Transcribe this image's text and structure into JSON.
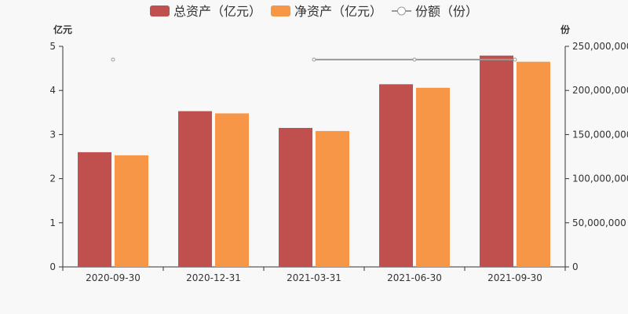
{
  "chart_data": {
    "type": "bar",
    "categories": [
      "2020-09-30",
      "2020-12-31",
      "2021-03-31",
      "2021-06-30",
      "2021-09-30"
    ],
    "series": [
      {
        "name": "总资产（亿元）",
        "type": "bar",
        "axis": "left",
        "color": "#c0504d",
        "values": [
          2.6,
          3.53,
          3.15,
          4.14,
          4.79
        ]
      },
      {
        "name": "净资产（亿元）",
        "type": "bar",
        "axis": "left",
        "color": "#f79646",
        "values": [
          2.53,
          3.48,
          3.08,
          4.06,
          4.65
        ]
      },
      {
        "name": "份额（份）",
        "type": "line",
        "axis": "right",
        "color": "#999999",
        "values": [
          235000000,
          null,
          235000000,
          235000000,
          235000000
        ]
      }
    ],
    "y_left": {
      "label": "亿元",
      "ylim": [
        0,
        5
      ],
      "ticks": [
        "0",
        "1",
        "2",
        "3",
        "4",
        "5"
      ]
    },
    "y_right": {
      "label": "份",
      "ylim": [
        0,
        250000000
      ],
      "ticks": [
        "0",
        "50,000,000",
        "100,000,000",
        "150,000,000",
        "200,000,000",
        "250,000,000"
      ]
    },
    "legend_position": "top-center",
    "grid": false
  }
}
